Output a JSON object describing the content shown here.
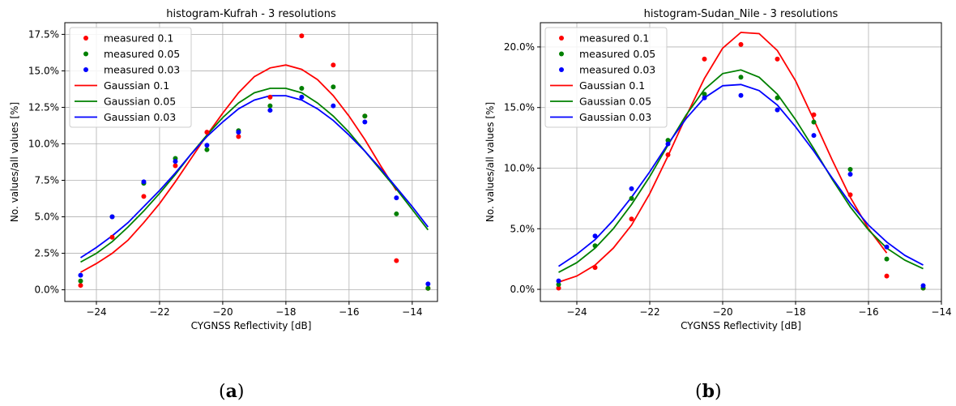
{
  "chart_data": [
    {
      "type": "scatter",
      "panel_label": "a",
      "title": "histogram-Kufrah - 3 resolutions",
      "xlabel": "CYGNSS Reflectivity [dB]",
      "ylabel": "No. values/all values [%]",
      "xlim": [
        -25.0,
        -13.2
      ],
      "ylim": [
        -0.8,
        18.3
      ],
      "xticks": [
        -24,
        -22,
        -20,
        -18,
        -16,
        -14
      ],
      "xtick_labels": [
        "−24",
        "−22",
        "−20",
        "−18",
        "−16",
        "−14"
      ],
      "yticks": [
        0,
        2.5,
        5,
        7.5,
        10,
        12.5,
        15,
        17.5
      ],
      "ytick_labels": [
        "0.0%",
        "2.5%",
        "5.0%",
        "7.5%",
        "10.0%",
        "12.5%",
        "15.0%",
        "17.5%"
      ],
      "grid": true,
      "legend_position": "top-left",
      "series": [
        {
          "name": "measured 0.1",
          "kind": "points",
          "color": "#ff0000",
          "x": [
            -24.5,
            -23.5,
            -22.5,
            -21.5,
            -20.5,
            -19.5,
            -18.5,
            -17.5,
            -16.5,
            -15.5,
            -14.5,
            -13.5
          ],
          "y": [
            0.3,
            3.6,
            6.4,
            8.5,
            10.8,
            10.5,
            13.2,
            17.4,
            15.4,
            11.9,
            2.0,
            0.1
          ]
        },
        {
          "name": "measured 0.05",
          "kind": "points",
          "color": "#008000",
          "x": [
            -24.5,
            -23.5,
            -22.5,
            -21.5,
            -20.5,
            -19.5,
            -18.5,
            -17.5,
            -16.5,
            -15.5,
            -14.5,
            -13.5
          ],
          "y": [
            0.6,
            5.0,
            7.3,
            9.0,
            9.6,
            10.9,
            12.6,
            13.8,
            13.9,
            11.9,
            5.2,
            0.1
          ]
        },
        {
          "name": "measured 0.03",
          "kind": "points",
          "color": "#0000ff",
          "x": [
            -24.5,
            -23.5,
            -22.5,
            -21.5,
            -20.5,
            -19.5,
            -18.5,
            -17.5,
            -16.5,
            -15.5,
            -14.5,
            -13.5
          ],
          "y": [
            1.0,
            5.0,
            7.4,
            8.8,
            9.9,
            10.8,
            12.3,
            13.2,
            12.6,
            11.5,
            6.3,
            0.4
          ]
        },
        {
          "name": "Gaussian 0.1",
          "kind": "line",
          "color": "#ff0000",
          "x": [
            -24.5,
            -24,
            -23.5,
            -23,
            -22.5,
            -22,
            -21.5,
            -21,
            -20.5,
            -20,
            -19.5,
            -19,
            -18.5,
            -18,
            -17.5,
            -17,
            -16.5,
            -16,
            -15.5,
            -15,
            -14.5
          ],
          "y": [
            1.2,
            1.8,
            2.5,
            3.4,
            4.6,
            5.9,
            7.4,
            9.0,
            10.6,
            12.1,
            13.5,
            14.6,
            15.2,
            15.4,
            15.1,
            14.4,
            13.3,
            11.9,
            10.3,
            8.5,
            6.8
          ]
        },
        {
          "name": "Gaussian 0.05",
          "kind": "line",
          "color": "#008000",
          "x": [
            -24.5,
            -24,
            -23.5,
            -23,
            -22.5,
            -22,
            -21.5,
            -21,
            -20.5,
            -20,
            -19.5,
            -19,
            -18.5,
            -18,
            -17.5,
            -17,
            -16.5,
            -16,
            -15.5,
            -15,
            -14.5,
            -14,
            -13.5
          ],
          "y": [
            1.9,
            2.5,
            3.3,
            4.3,
            5.4,
            6.6,
            7.9,
            9.3,
            10.6,
            11.8,
            12.8,
            13.5,
            13.8,
            13.8,
            13.5,
            12.8,
            11.9,
            10.8,
            9.5,
            8.2,
            6.9,
            5.5,
            4.1
          ]
        },
        {
          "name": "Gaussian 0.03",
          "kind": "line",
          "color": "#0000ff",
          "x": [
            -24.5,
            -24,
            -23.5,
            -23,
            -22.5,
            -22,
            -21.5,
            -21,
            -20.5,
            -20,
            -19.5,
            -19,
            -18.5,
            -18,
            -17.5,
            -17,
            -16.5,
            -16,
            -15.5,
            -15,
            -14.5,
            -14,
            -13.5
          ],
          "y": [
            2.2,
            2.9,
            3.7,
            4.6,
            5.7,
            6.8,
            8.0,
            9.3,
            10.5,
            11.5,
            12.4,
            13.0,
            13.3,
            13.3,
            13.0,
            12.4,
            11.6,
            10.6,
            9.5,
            8.3,
            7.0,
            5.7,
            4.3
          ]
        }
      ]
    },
    {
      "type": "scatter",
      "panel_label": "b",
      "title": "histogram-Sudan_Nile - 3 resolutions",
      "xlabel": "CYGNSS Reflectivity [dB]",
      "ylabel": "No. values/all values [%]",
      "xlim": [
        -25.0,
        -14.0
      ],
      "ylim": [
        -1.0,
        22.0
      ],
      "xticks": [
        -24,
        -22,
        -20,
        -18,
        -16,
        -14
      ],
      "xtick_labels": [
        "−24",
        "−22",
        "−20",
        "−18",
        "−16",
        "−14"
      ],
      "yticks": [
        0,
        5,
        10,
        15,
        20
      ],
      "ytick_labels": [
        "0.0%",
        "5.0%",
        "10.0%",
        "15.0%",
        "20.0%"
      ],
      "grid": true,
      "legend_position": "top-left",
      "series": [
        {
          "name": "measured 0.1",
          "kind": "points",
          "color": "#ff0000",
          "x": [
            -24.5,
            -23.5,
            -22.5,
            -21.5,
            -20.5,
            -19.5,
            -18.5,
            -17.5,
            -16.5,
            -15.5,
            -14.5
          ],
          "y": [
            0.1,
            1.8,
            5.8,
            11.1,
            19.0,
            20.2,
            19.0,
            14.4,
            7.8,
            1.1,
            0.1
          ]
        },
        {
          "name": "measured 0.05",
          "kind": "points",
          "color": "#008000",
          "x": [
            -24.5,
            -23.5,
            -22.5,
            -21.5,
            -20.5,
            -19.5,
            -18.5,
            -17.5,
            -16.5,
            -15.5,
            -14.5
          ],
          "y": [
            0.4,
            3.6,
            7.5,
            12.3,
            16.1,
            17.5,
            15.8,
            13.8,
            9.9,
            2.5,
            0.1
          ]
        },
        {
          "name": "measured 0.03",
          "kind": "points",
          "color": "#0000ff",
          "x": [
            -24.5,
            -23.5,
            -22.5,
            -21.5,
            -20.5,
            -19.5,
            -18.5,
            -17.5,
            -16.5,
            -15.5,
            -14.5
          ],
          "y": [
            0.7,
            4.4,
            8.3,
            12.0,
            15.8,
            16.0,
            14.8,
            12.7,
            9.5,
            3.5,
            0.3
          ]
        },
        {
          "name": "Gaussian 0.1",
          "kind": "line",
          "color": "#ff0000",
          "x": [
            -24.5,
            -24,
            -23.5,
            -23,
            -22.5,
            -22,
            -21.5,
            -21,
            -20.5,
            -20,
            -19.5,
            -19,
            -18.5,
            -18,
            -17.5,
            -17,
            -16.5,
            -16,
            -15.5
          ],
          "y": [
            0.6,
            1.1,
            2.0,
            3.4,
            5.3,
            7.9,
            11.0,
            14.3,
            17.4,
            19.9,
            21.2,
            21.1,
            19.7,
            17.2,
            14.0,
            10.7,
            7.6,
            5.0,
            3.0
          ]
        },
        {
          "name": "Gaussian 0.05",
          "kind": "line",
          "color": "#008000",
          "x": [
            -24.5,
            -24,
            -23.5,
            -23,
            -22.5,
            -22,
            -21.5,
            -21,
            -20.5,
            -20,
            -19.5,
            -19,
            -18.5,
            -18,
            -17.5,
            -17,
            -16.5,
            -16,
            -15.5,
            -15,
            -14.5
          ],
          "y": [
            1.4,
            2.2,
            3.4,
            5.0,
            7.0,
            9.3,
            11.9,
            14.4,
            16.5,
            17.8,
            18.1,
            17.5,
            16.1,
            14.0,
            11.6,
            9.1,
            6.8,
            4.9,
            3.4,
            2.4,
            1.7
          ]
        },
        {
          "name": "Gaussian 0.03",
          "kind": "line",
          "color": "#0000ff",
          "x": [
            -24.5,
            -24,
            -23.5,
            -23,
            -22.5,
            -22,
            -21.5,
            -21,
            -20.5,
            -20,
            -19.5,
            -19,
            -18.5,
            -18,
            -17.5,
            -17,
            -16.5,
            -16,
            -15.5,
            -15,
            -14.5
          ],
          "y": [
            1.9,
            2.9,
            4.1,
            5.7,
            7.6,
            9.7,
            12.0,
            14.1,
            15.8,
            16.8,
            16.9,
            16.4,
            15.2,
            13.4,
            11.4,
            9.2,
            7.1,
            5.3,
            3.9,
            2.8,
            2.0
          ]
        }
      ]
    }
  ]
}
